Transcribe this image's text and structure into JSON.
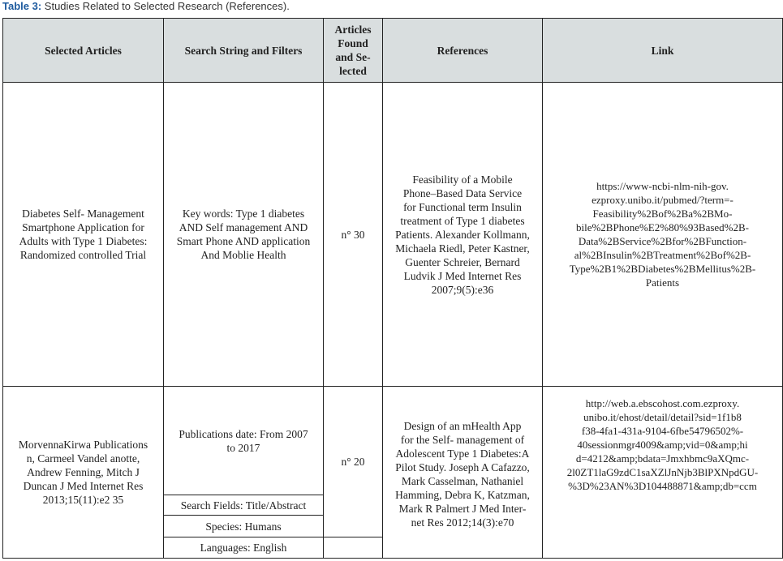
{
  "caption": {
    "label": "Table 3:",
    "text": " Studies Related to Selected Research (References)."
  },
  "colors": {
    "caption_label": "#1d5a9e",
    "header_bg": "#d9dedf"
  },
  "headers": [
    "Selected Articles",
    "Search String and Filters",
    "Articles\nFound\nand Se-\nlected",
    "References",
    "Link"
  ],
  "rows": [
    {
      "article": "Diabetes Self- Management\nSmartphone Application for\nAdults with Type 1 Diabetes:\nRandomized controlled Trial",
      "search": "Key words: Type 1 diabetes\nAND Self management AND\nSmart Phone AND application\nAnd Moblie Health",
      "found": "n° 30",
      "reference": "Feasibility of a Mobile\nPhone–Based Data Service\nfor Functional term Insulin\ntreatment of Type 1 diabetes\nPatients. Alexander Kollmann,\nMichaela Riedl, Peter Kastner,\nGuenter Schreier, Bernard\nLudvik J Med Internet Res\n2007;9(5):e36",
      "link": "https://www-ncbi-nlm-nih-gov.\nezproxy.unibo.it/pubmed/?term=-\nFeasibility%2Bof%2Ba%2BMo-\nbile%2BPhone%E2%80%93Based%2B-\nData%2BService%2Bfor%2BFunction-\nal%2BInsulin%2BTreatment%2Bof%2B-\nType%2B1%2BDiabetes%2BMellitus%2B-\nPatients"
    },
    {
      "article": "MorvennaKirwa Publications\nn, Carmeel Vandel anotte,\nAndrew Fenning, Mitch J\nDuncan J Med Internet Res\n2013;15(11):e2 35",
      "filters": [
        "Publications date: From 2007\nto 2017",
        "Search Fields: Title/Abstract",
        "Species: Humans",
        "Languages: English"
      ],
      "found": "n° 20",
      "reference": "Design of an mHealth App\nfor the Self- management of\nAdolescent Type 1 Diabetes:A\nPilot Study. Joseph A Cafazzo,\nMark Casselman, Nathaniel\nHamming, Debra K, Katzman,\nMark R Palmert J Med Inter-\nnet Res 2012;14(3):e70",
      "link": "http://web.a.ebscohost.com.ezproxy.\nunibo.it/ehost/detail/detail?sid=1f1b8\nf38-4fa1-431a-9104-6fbe54796502%-\n40sessionmgr4009&amp;vid=0&amp;hi\nd=4212&amp;bdata=Jmxhbmc9aXQmc-\n2l0ZT1laG9zdC1saXZlJnNjb3BlPXNpdGU-\n%3D%23AN%3D104488871&amp;db=ccm"
    }
  ]
}
